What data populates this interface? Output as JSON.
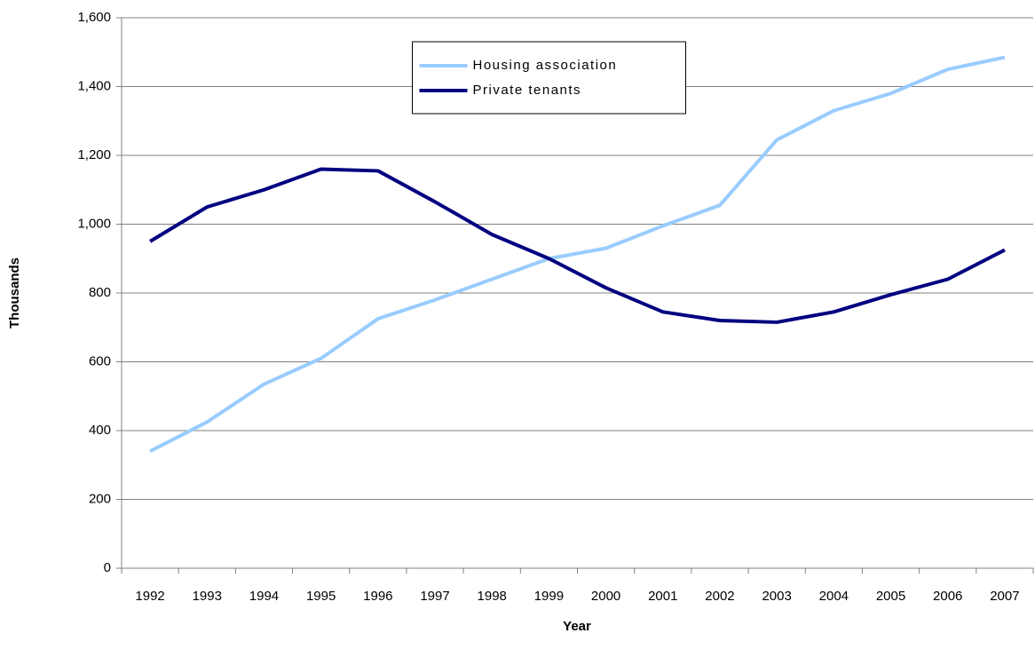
{
  "chart_data": {
    "type": "line",
    "x_label": "Year",
    "y_label": "Thousands",
    "categories": [
      "1992",
      "1993",
      "1994",
      "1995",
      "1996",
      "1997",
      "1998",
      "1999",
      "2000",
      "2001",
      "2002",
      "2003",
      "2004",
      "2005",
      "2006",
      "2007"
    ],
    "series": [
      {
        "name": "Housing association",
        "color": "#99ccff",
        "values": [
          340,
          425,
          535,
          610,
          725,
          780,
          840,
          900,
          930,
          995,
          1055,
          1245,
          1330,
          1380,
          1450,
          1485
        ]
      },
      {
        "name": "Private tenants",
        "color": "#000080",
        "values": [
          950,
          1050,
          1100,
          1160,
          1155,
          1065,
          970,
          900,
          815,
          745,
          720,
          715,
          745,
          795,
          840,
          925
        ]
      }
    ],
    "ylim": [
      0,
      1600
    ],
    "yticks": [
      0,
      200,
      400,
      600,
      800,
      {
        "value": 1000,
        "label": "1,000"
      },
      {
        "value": 1200,
        "label": "1,200"
      },
      {
        "value": 1400,
        "label": "1,400"
      },
      {
        "value": 1600,
        "label": "1,600"
      }
    ],
    "grid": true,
    "legend": "top"
  }
}
